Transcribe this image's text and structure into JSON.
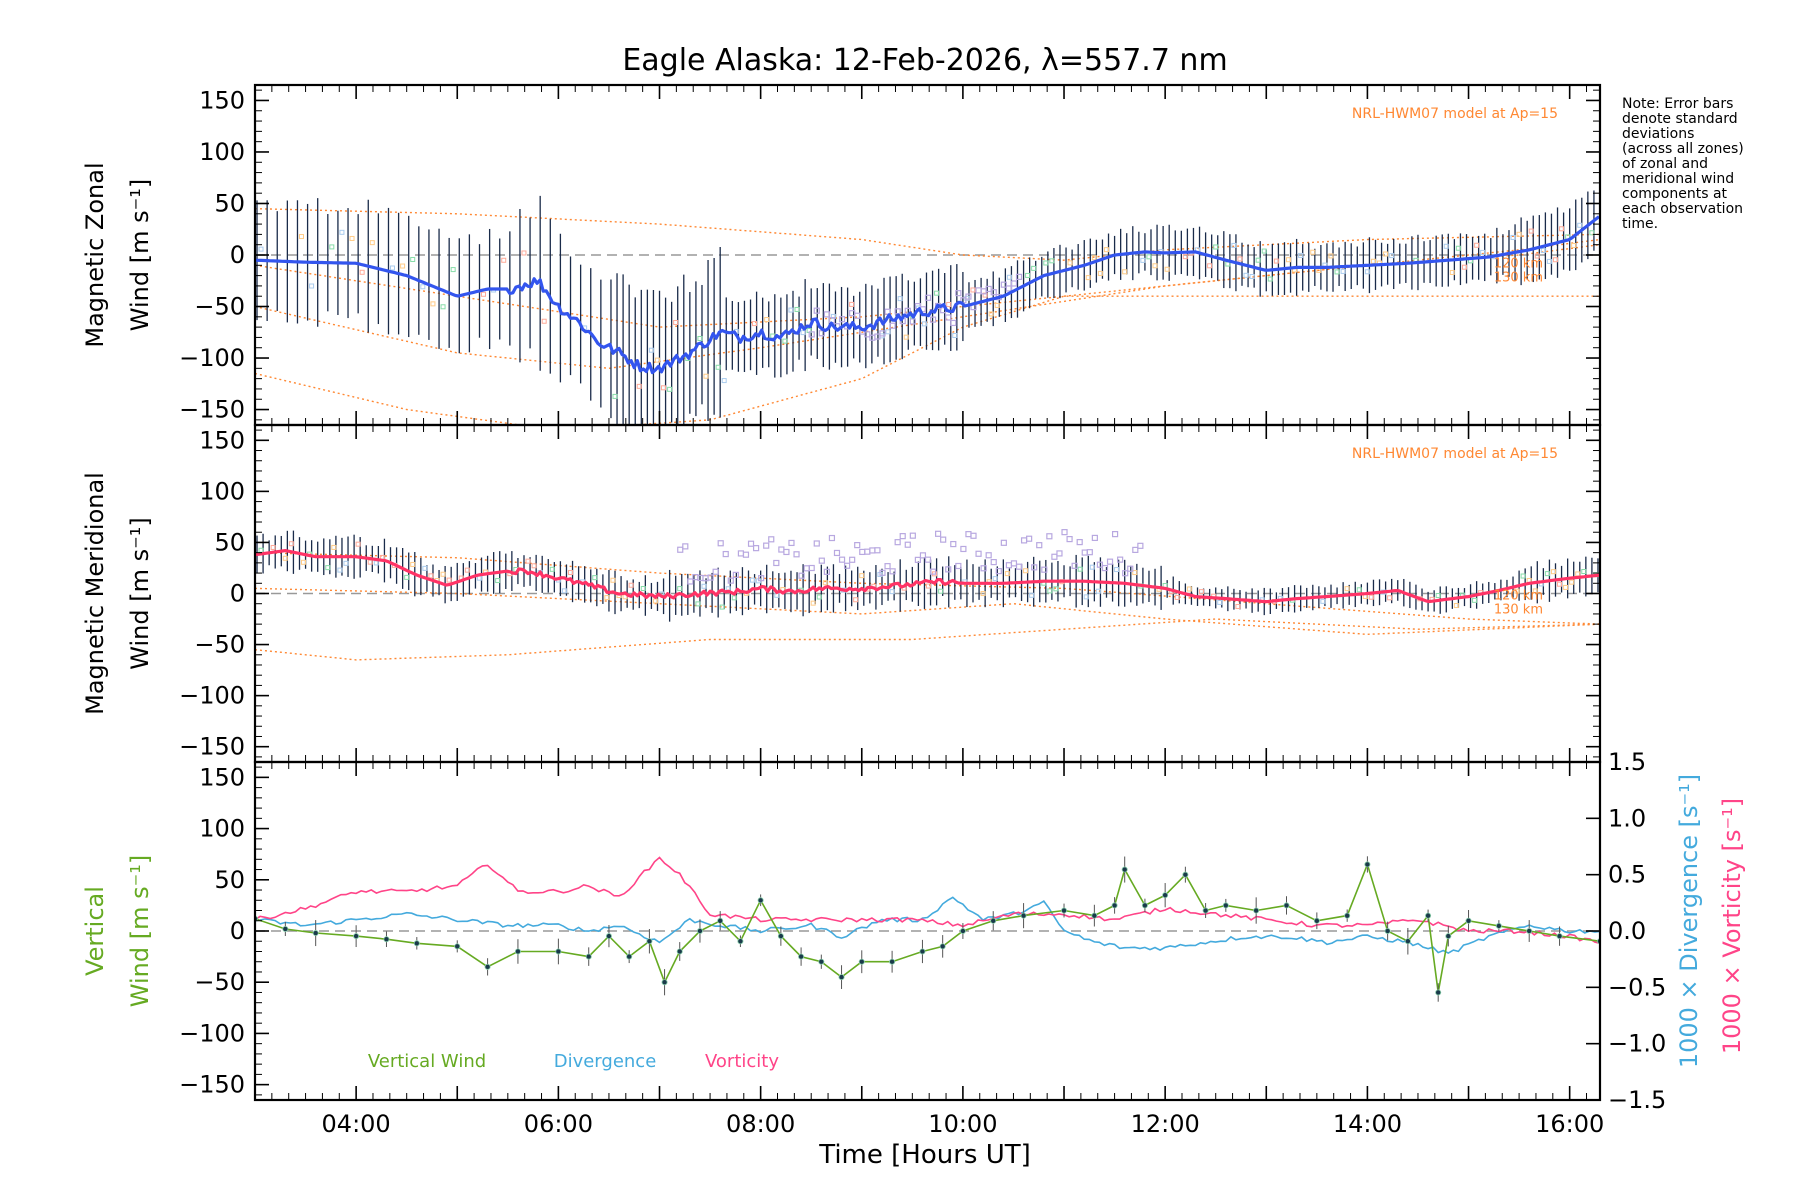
{
  "chart_data": {
    "type": "line",
    "title": "Eagle Alaska: 12-Feb-2026, λ=557.7 nm",
    "xlabel": "Time [Hours UT]",
    "xlim": [
      3.0,
      16.3
    ],
    "x_ticks": [
      4,
      6,
      8,
      10,
      12,
      14,
      16
    ],
    "x_tick_labels": [
      "04:00",
      "06:00",
      "08:00",
      "10:00",
      "12:00",
      "14:00",
      "16:00"
    ],
    "note": [
      "Note: Error bars",
      "denote standard",
      "deviations",
      "(across all zones)",
      "of zonal and",
      "meridional wind",
      "components at",
      "each observation",
      "time."
    ],
    "colors": {
      "zonal": "#3355ee",
      "zonal_light": "#44aaff",
      "meridional": "#ff3366",
      "model": "#ff8833",
      "errorbar": "#1a2b4a",
      "scatter": "#b8a8e0",
      "vertical": "#66aa22",
      "divergence": "#44aadd",
      "vorticity": "#ff4488",
      "zero": "#999999",
      "vertical_point": "#1a3a4a"
    },
    "panels": [
      {
        "ylabel_line1": "Magnetic Zonal",
        "ylabel_line2": "Wind [m s⁻¹]",
        "ylim": [
          -165,
          165
        ],
        "y_ticks": [
          -150,
          -100,
          -50,
          0,
          50,
          100,
          150
        ],
        "y_tick_labels": [
          "−150",
          "−100",
          "−50",
          "0",
          "50",
          "100",
          "150"
        ],
        "model_label": "NRL-HWM07 model at Ap=15",
        "alt_labels": [
          "120 km",
          "130 km"
        ],
        "series": [
          {
            "name": "Zonal Wind",
            "x": [
              3.0,
              3.5,
              4.0,
              4.5,
              5.0,
              5.3,
              5.5,
              5.8,
              6.0,
              6.2,
              6.4,
              6.6,
              6.8,
              7.0,
              7.3,
              7.6,
              7.8,
              8.0,
              8.2,
              8.5,
              8.7,
              9.0,
              9.3,
              9.6,
              10.0,
              10.4,
              10.8,
              11.2,
              11.5,
              11.8,
              12.0,
              12.3,
              12.6,
              13.0,
              13.3,
              13.6,
              14.0,
              14.4,
              14.8,
              15.2,
              15.6,
              16.0,
              16.3
            ],
            "y": [
              -5,
              -7,
              -8,
              -20,
              -40,
              -33,
              -33,
              -25,
              -50,
              -65,
              -85,
              -95,
              -108,
              -110,
              -95,
              -75,
              -80,
              -75,
              -80,
              -65,
              -70,
              -70,
              -62,
              -55,
              -50,
              -40,
              -20,
              -10,
              0,
              3,
              2,
              3,
              -5,
              -15,
              -12,
              -12,
              -10,
              -8,
              -5,
              -2,
              5,
              15,
              38
            ]
          },
          {
            "name": "Model 120 km",
            "x": [
              3.0,
              5.0,
              7.0,
              9.0,
              10.0,
              12.0,
              14.0,
              15.5,
              16.3
            ],
            "y": [
              -10,
              -40,
              -70,
              -60,
              -50,
              -30,
              -10,
              5,
              15
            ]
          },
          {
            "name": "Model 130 km",
            "x": [
              3.0,
              5.0,
              6.5,
              8.0,
              10.0,
              12.0,
              14.0,
              15.5,
              16.3
            ],
            "y": [
              -50,
              -95,
              -110,
              -90,
              -60,
              -30,
              -10,
              0,
              10
            ]
          },
          {
            "name": "Model upper",
            "x": [
              3.0,
              5.0,
              7.0,
              9.0,
              10.0,
              11.0,
              12.0,
              14.0,
              16.3
            ],
            "y": [
              45,
              40,
              30,
              15,
              0,
              -5,
              5,
              15,
              20
            ]
          },
          {
            "name": "Model lower",
            "x": [
              3.0,
              4.5,
              6.0,
              7.5,
              9.0,
              10.0,
              11.0
            ],
            "y": [
              -115,
              -150,
              -170,
              -160,
              -120,
              -70,
              -40
            ]
          }
        ]
      },
      {
        "ylabel_line1": "Magnetic Meridional",
        "ylabel_line2": "Wind [m s⁻¹]",
        "ylim": [
          -165,
          165
        ],
        "y_ticks": [
          -150,
          -100,
          -50,
          0,
          50,
          100,
          150
        ],
        "y_tick_labels": [
          "−150",
          "−100",
          "−50",
          "0",
          "50",
          "100",
          "150"
        ],
        "model_label": "NRL-HWM07 model at Ap=15",
        "alt_labels": [
          "120 km",
          "130 km"
        ],
        "series": [
          {
            "name": "Meridional Wind",
            "x": [
              3.0,
              3.3,
              3.6,
              4.0,
              4.3,
              4.6,
              4.9,
              5.2,
              5.5,
              5.7,
              6.0,
              6.3,
              6.6,
              7.0,
              7.4,
              7.8,
              8.0,
              8.3,
              8.6,
              9.0,
              9.4,
              9.8,
              10.0,
              10.4,
              10.8,
              11.2,
              11.6,
              12.0,
              12.3,
              12.6,
              13.0,
              13.3,
              13.6,
              14.0,
              14.3,
              14.6,
              15.0,
              15.3,
              15.6,
              16.0,
              16.3
            ],
            "y": [
              38,
              42,
              36,
              36,
              32,
              18,
              8,
              18,
              22,
              22,
              15,
              8,
              0,
              -3,
              0,
              2,
              5,
              2,
              5,
              5,
              8,
              12,
              10,
              10,
              12,
              12,
              10,
              5,
              -3,
              -5,
              -8,
              -5,
              -3,
              0,
              3,
              -8,
              -3,
              3,
              10,
              15,
              18
            ]
          },
          {
            "name": "Model upper",
            "x": [
              3.0,
              5.0,
              7.0,
              9.0,
              11.0,
              13.0,
              15.0,
              16.3
            ],
            "y": [
              40,
              35,
              20,
              10,
              5,
              -10,
              -25,
              -30
            ]
          },
          {
            "name": "Model 120 km",
            "x": [
              3.0,
              5.0,
              7.0,
              9.0,
              10.5,
              12.0,
              14.0,
              16.3
            ],
            "y": [
              5,
              0,
              -10,
              -20,
              -10,
              -25,
              -40,
              -30
            ]
          },
          {
            "name": "Model lower",
            "x": [
              3.0,
              4.0,
              5.5,
              7.5,
              9.5,
              11.0,
              12.5,
              14.5,
              16.3
            ],
            "y": [
              -55,
              -65,
              -60,
              -45,
              -45,
              -35,
              -25,
              -35,
              -30
            ]
          }
        ]
      },
      {
        "ylabel_line1": "Vertical",
        "ylabel_line2": "Wind [m s⁻¹]",
        "ylim": [
          -165,
          165
        ],
        "y_ticks": [
          -150,
          -100,
          -50,
          0,
          50,
          100,
          150
        ],
        "y_tick_labels": [
          "−150",
          "−100",
          "−50",
          "0",
          "50",
          "100",
          "150"
        ],
        "right_ylim": [
          -1.5,
          1.5
        ],
        "right_y_ticks": [
          -1.5,
          -1.0,
          -0.5,
          0.0,
          0.5,
          1.0,
          1.5
        ],
        "right_y_tick_labels": [
          "−1.5",
          "−1.0",
          "−0.5",
          "0.0",
          "0.5",
          "1.0",
          "1.5"
        ],
        "right_label_divergence": "1000 × Divergence [s⁻¹]",
        "right_label_vorticity": "1000 × Vorticity [s⁻¹]",
        "legend": [
          "Vertical Wind",
          "Divergence",
          "Vorticity"
        ],
        "series": [
          {
            "name": "Vertical Wind",
            "x": [
              3.0,
              3.3,
              3.6,
              4.0,
              4.3,
              4.6,
              5.0,
              5.3,
              5.6,
              6.0,
              6.3,
              6.5,
              6.7,
              6.9,
              7.05,
              7.2,
              7.4,
              7.6,
              7.8,
              8.0,
              8.2,
              8.4,
              8.6,
              8.8,
              9.0,
              9.3,
              9.6,
              9.8,
              10.0,
              10.3,
              10.6,
              11.0,
              11.3,
              11.5,
              11.6,
              11.8,
              12.0,
              12.2,
              12.4,
              12.6,
              12.9,
              13.2,
              13.5,
              13.8,
              14.0,
              14.2,
              14.4,
              14.6,
              14.7,
              14.8,
              15.0,
              15.3,
              15.6,
              15.9,
              16.3
            ],
            "y": [
              12,
              2,
              -2,
              -5,
              -8,
              -12,
              -15,
              -35,
              -20,
              -20,
              -25,
              -5,
              -25,
              -10,
              -50,
              -20,
              0,
              10,
              -10,
              30,
              -5,
              -25,
              -30,
              -45,
              -30,
              -30,
              -20,
              -15,
              0,
              10,
              15,
              20,
              15,
              25,
              60,
              25,
              35,
              55,
              20,
              25,
              20,
              25,
              10,
              15,
              65,
              0,
              -10,
              15,
              -60,
              -5,
              10,
              5,
              0,
              -5,
              -10
            ]
          },
          {
            "name": "Divergence",
            "scale": 100,
            "x": [
              3.0,
              3.5,
              4.0,
              4.5,
              5.0,
              5.5,
              6.0,
              6.3,
              6.6,
              7.0,
              7.3,
              7.6,
              8.0,
              8.5,
              8.8,
              9.2,
              9.6,
              9.9,
              10.2,
              10.5,
              10.8,
              11.0,
              11.3,
              11.6,
              12.0,
              12.4,
              12.8,
              13.2,
              13.6,
              14.0,
              14.4,
              14.8,
              15.2,
              15.6,
              16.0,
              16.3
            ],
            "y": [
              0.1,
              0.05,
              0.1,
              0.15,
              0.1,
              0.05,
              0.05,
              0.0,
              0.05,
              -0.1,
              0.1,
              0.05,
              0.0,
              0.05,
              -0.05,
              0.1,
              0.1,
              0.3,
              0.1,
              0.15,
              0.25,
              0.0,
              -0.1,
              -0.15,
              -0.15,
              -0.1,
              -0.05,
              -0.05,
              -0.1,
              -0.05,
              -0.1,
              -0.2,
              -0.05,
              0.05,
              0.0,
              0.0
            ]
          },
          {
            "name": "Vorticity",
            "scale": 100,
            "x": [
              3.0,
              3.5,
              4.0,
              4.5,
              5.0,
              5.3,
              5.6,
              6.0,
              6.3,
              6.6,
              7.0,
              7.2,
              7.5,
              8.0,
              8.5,
              9.0,
              9.5,
              10.0,
              10.5,
              11.0,
              11.5,
              12.0,
              12.5,
              13.0,
              13.5,
              14.0,
              14.5,
              15.0,
              15.5,
              16.0,
              16.3
            ],
            "y": [
              0.1,
              0.2,
              0.35,
              0.35,
              0.4,
              0.6,
              0.35,
              0.35,
              0.4,
              0.3,
              0.65,
              0.5,
              0.15,
              0.1,
              0.1,
              0.1,
              0.1,
              0.05,
              0.15,
              0.15,
              0.1,
              0.2,
              0.15,
              0.1,
              0.05,
              0.05,
              0.1,
              0.0,
              0.0,
              -0.05,
              -0.1
            ]
          }
        ]
      }
    ]
  }
}
